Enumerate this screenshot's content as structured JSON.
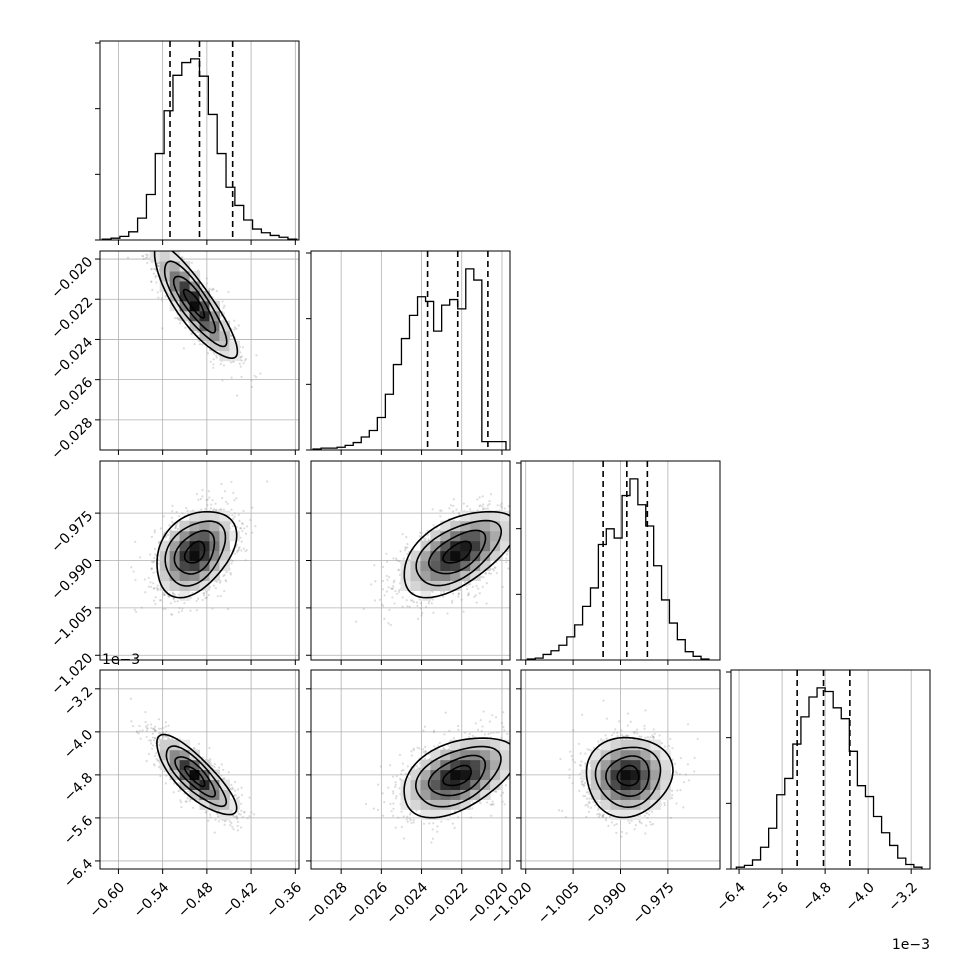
{
  "chart_data": {
    "type": "corner",
    "params": [
      {
        "range": [
          -0.625,
          -0.355
        ],
        "ticks": [
          -0.6,
          -0.54,
          -0.48,
          -0.42,
          -0.36
        ],
        "tick_labels": [
          "−0.60",
          "−0.54",
          "−0.48",
          "−0.42",
          "−0.36"
        ],
        "offset_label": ""
      },
      {
        "range": [
          -0.0295,
          -0.0196
        ],
        "ticks": [
          -0.028,
          -0.026,
          -0.024,
          -0.022,
          -0.02
        ],
        "tick_labels": [
          "−0.028",
          "−0.026",
          "−0.024",
          "−0.022",
          "−0.020"
        ],
        "offset_label": ""
      },
      {
        "range": [
          -1.0215,
          -0.9585
        ],
        "ticks": [
          -1.02,
          -1.005,
          -0.99,
          -0.975
        ],
        "tick_labels": [
          "−1.020",
          "−1.005",
          "−0.990",
          "−0.975"
        ],
        "offset_label": ""
      },
      {
        "range": [
          -6.55,
          -2.85
        ],
        "ticks": [
          -6.4,
          -5.6,
          -4.8,
          -4.0,
          -3.2
        ],
        "tick_labels": [
          "−6.4",
          "−5.6",
          "−4.8",
          "−4.0",
          "−3.2"
        ],
        "offset_label": "1e−3"
      }
    ],
    "histograms": [
      {
        "bins": [
          -0.622,
          -0.61,
          -0.598,
          -0.586,
          -0.574,
          -0.562,
          -0.55,
          -0.538,
          -0.526,
          -0.514,
          -0.502,
          -0.49,
          -0.478,
          -0.466,
          -0.454,
          -0.442,
          -0.43,
          -0.418,
          -0.406,
          -0.394,
          -0.382,
          -0.37,
          -0.358
        ],
        "counts": [
          1,
          2,
          4,
          9,
          24,
          50,
          95,
          142,
          181,
          195,
          199,
          180,
          138,
          95,
          58,
          38,
          22,
          12,
          8,
          5,
          3,
          1
        ],
        "quantiles": [
          -0.53,
          -0.49,
          -0.445
        ]
      },
      {
        "bins": [
          -0.0294,
          -0.029,
          -0.0286,
          -0.0282,
          -0.0278,
          -0.0274,
          -0.027,
          -0.0266,
          -0.0262,
          -0.0258,
          -0.0254,
          -0.025,
          -0.0246,
          -0.0242,
          -0.0238,
          -0.0234,
          -0.023,
          -0.0226,
          -0.0222,
          -0.0218,
          -0.0214,
          -0.021,
          -0.0206,
          -0.0202,
          -0.0198
        ],
        "counts": [
          1,
          2,
          2,
          3,
          5,
          8,
          14,
          21,
          35,
          60,
          92,
          120,
          145,
          165,
          160,
          128,
          156,
          162,
          152,
          195,
          183,
          9,
          9,
          9
        ],
        "quantiles": [
          -0.0237,
          -0.0222,
          -0.0207
        ]
      },
      {
        "bins": [
          -1.0195,
          -1.017,
          -1.0145,
          -1.012,
          -1.0095,
          -1.007,
          -1.0045,
          -1.002,
          -0.9995,
          -0.997,
          -0.9945,
          -0.992,
          -0.9895,
          -0.987,
          -0.9845,
          -0.982,
          -0.9795,
          -0.977,
          -0.9745,
          -0.972,
          -0.9695,
          -0.967,
          -0.9645,
          -0.962
        ],
        "counts": [
          1,
          2,
          6,
          10,
          16,
          25,
          38,
          58,
          78,
          125,
          142,
          132,
          178,
          196,
          168,
          145,
          102,
          65,
          40,
          22,
          9,
          4,
          1
        ],
        "quantiles": [
          -0.9955,
          -0.988,
          -0.9815
        ]
      },
      {
        "bins": [
          -6.45,
          -6.3,
          -6.15,
          -6.0,
          -5.85,
          -5.7,
          -5.55,
          -5.4,
          -5.25,
          -5.1,
          -4.95,
          -4.8,
          -4.65,
          -4.5,
          -4.35,
          -4.2,
          -4.05,
          -3.9,
          -3.75,
          -3.6,
          -3.45,
          -3.3,
          -3.15,
          -3.0
        ],
        "counts": [
          2,
          4,
          10,
          24,
          45,
          82,
          100,
          138,
          168,
          190,
          200,
          196,
          178,
          166,
          130,
          92,
          80,
          58,
          40,
          26,
          12,
          5,
          2
        ],
        "quantiles": [
          -5.32,
          -4.83,
          -4.34
        ]
      }
    ],
    "pairs": [
      {
        "row": 1,
        "col": 0,
        "mean": [
          -0.497,
          -0.0222
        ],
        "sd": [
          0.028,
          0.0014
        ],
        "corr": -0.85
      },
      {
        "row": 2,
        "col": 0,
        "mean": [
          -0.496,
          -0.9875
        ],
        "sd": [
          0.027,
          0.0068
        ],
        "corr": 0.35
      },
      {
        "row": 2,
        "col": 1,
        "mean": [
          -0.0222,
          -0.9875
        ],
        "sd": [
          0.0014,
          0.0068
        ],
        "corr": 0.55
      },
      {
        "row": 3,
        "col": 0,
        "mean": [
          -0.496,
          -4.82
        ],
        "sd": [
          0.027,
          0.37
        ],
        "corr": -0.8
      },
      {
        "row": 3,
        "col": 1,
        "mean": [
          -0.0222,
          -4.82
        ],
        "sd": [
          0.0014,
          0.37
        ],
        "corr": 0.45
      },
      {
        "row": 3,
        "col": 2,
        "mean": [
          -0.9875,
          -4.82
        ],
        "sd": [
          0.0068,
          0.37
        ],
        "corr": 0.05
      }
    ],
    "grid": true,
    "title": "",
    "xlabel": "",
    "ylabel": ""
  }
}
